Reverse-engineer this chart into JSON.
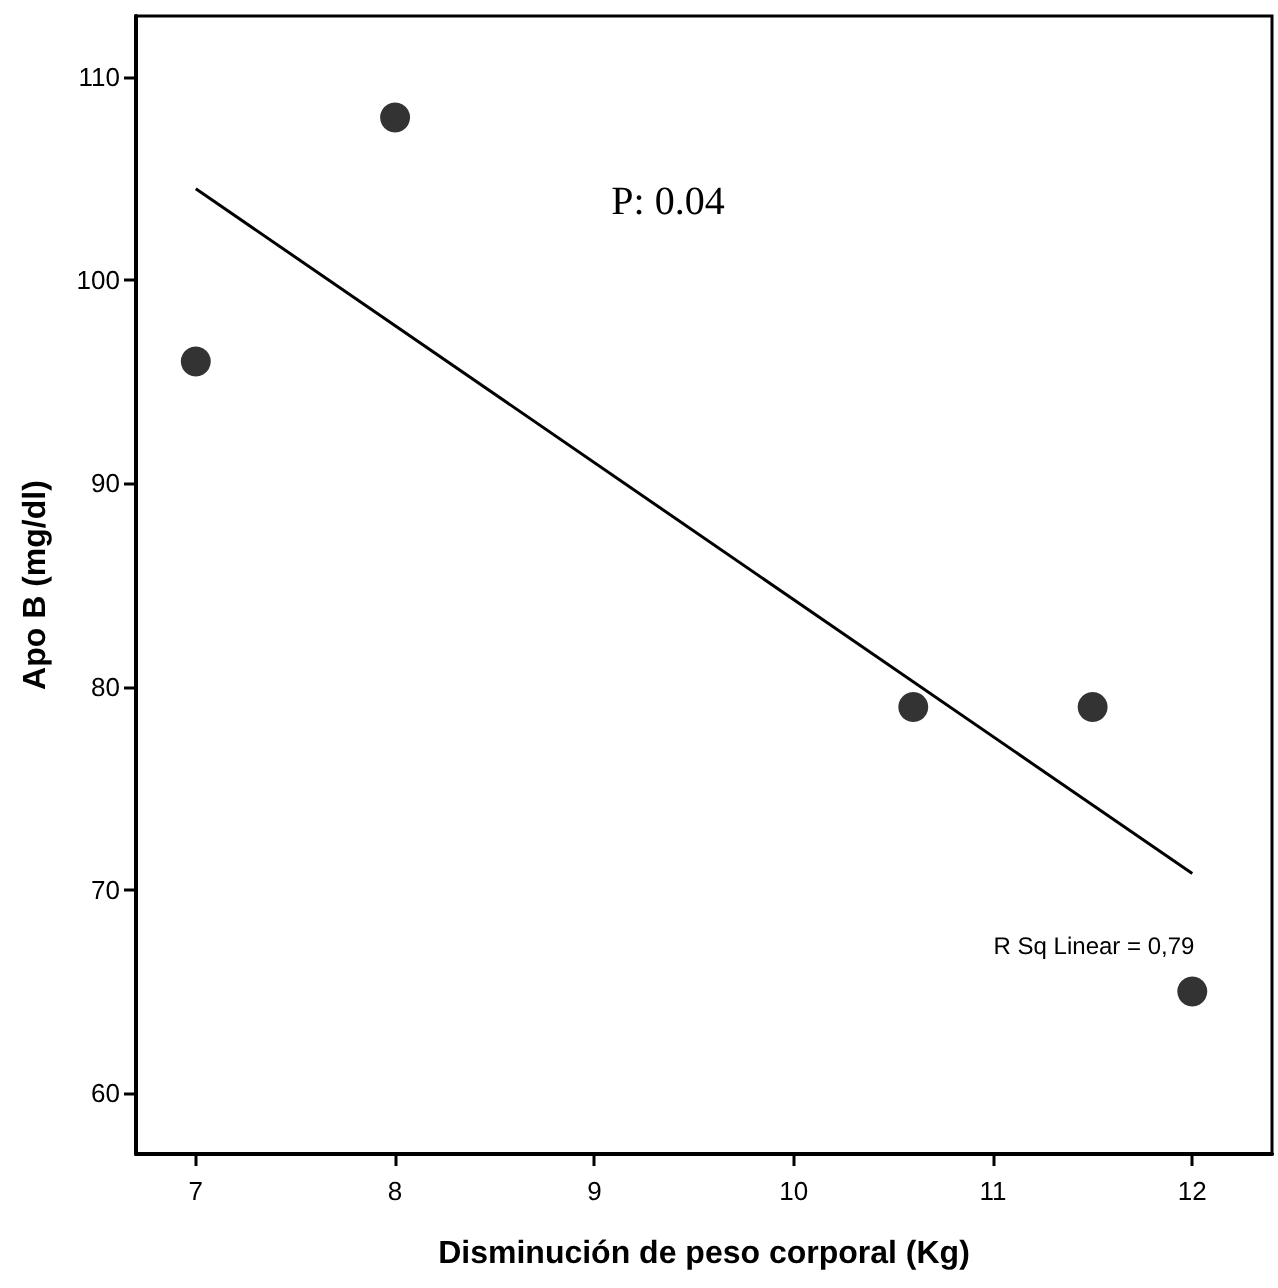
{
  "chart_data": {
    "type": "scatter",
    "xlabel": "Disminución de peso corporal (Kg)",
    "ylabel": "Apo B (mg/dl)",
    "xlim": [
      6.7,
      12.4
    ],
    "xticks": [
      7,
      8,
      9,
      10,
      11,
      12
    ],
    "ylim": [
      57,
      113
    ],
    "yticks": [
      60,
      70,
      80,
      90,
      100,
      110
    ],
    "grid": false,
    "marker": "circle",
    "series": [
      {
        "color": "#000000",
        "x": [
          7,
          8,
          10.6,
          11.5,
          12
        ],
        "values": [
          96,
          108,
          79,
          79,
          65
        ]
      },
      {
        "type": "line",
        "color": "#000000",
        "marker": "none",
        "line_style": "solid",
        "x": [
          7,
          12
        ],
        "values": [
          104.5,
          70.8
        ]
      }
    ],
    "annotations": [
      "P: 0.04",
      "R Sq Linear = 0,79"
    ]
  }
}
